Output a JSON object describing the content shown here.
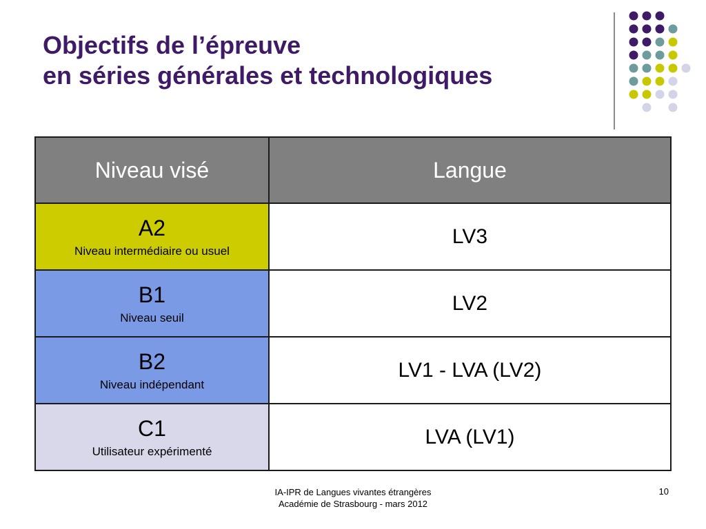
{
  "title": {
    "line1": "Objectifs de l’épreuve",
    "line2": "en séries générales et technologiques"
  },
  "colors": {
    "title": "#3f1a66",
    "header_bg": "#808080",
    "purple_dot": "#3f1a66",
    "teal_dot": "#6e9b9b",
    "yellow_dot": "#c8c800",
    "lavender_dot": "#d4d4e8"
  },
  "table": {
    "headers": [
      "Niveau visé",
      "Langue"
    ],
    "rows": [
      {
        "code": "A2",
        "description": "Niveau intermédiaire ou usuel",
        "language": "LV3",
        "color": "#cccc00"
      },
      {
        "code": "B1",
        "description": "Niveau seuil",
        "language": "LV2",
        "color": "#7b9ae6"
      },
      {
        "code": "B2",
        "description": "Niveau indépendant",
        "language": "LV1 - LVA (LV2)",
        "color": "#7b9ae6"
      },
      {
        "code": "C1",
        "description": "Utilisateur expérimenté",
        "language": "LVA (LV1)",
        "color": "#d8d8ea"
      }
    ]
  },
  "footer": {
    "line1": "IA-IPR de Langues vivantes étrangères",
    "line2": "Académie de Strasbourg - mars 2012",
    "page_number": "10"
  }
}
